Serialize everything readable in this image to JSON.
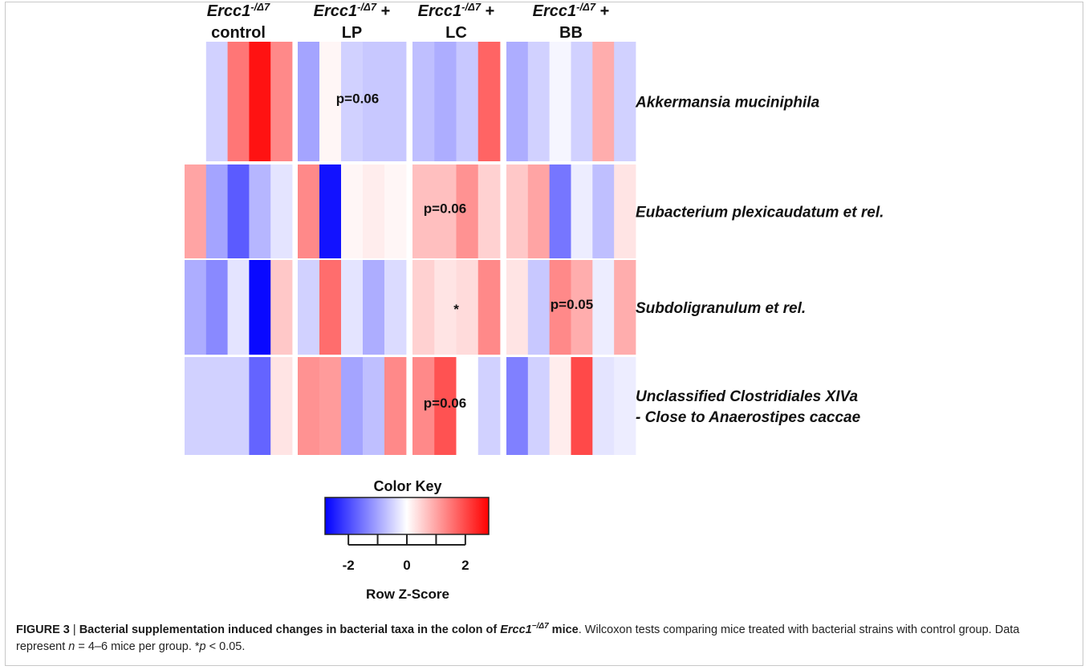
{
  "chart_data": {
    "type": "heatmap",
    "groups": [
      {
        "gene": "Ercc1",
        "sup": "-/Δ7",
        "suffix": "",
        "line2": "control",
        "n": 5
      },
      {
        "gene": "Ercc1",
        "sup": "-/Δ7",
        "suffix": " +",
        "line2": "LP",
        "n": 5
      },
      {
        "gene": "Ercc1",
        "sup": "-/Δ7",
        "suffix": " +",
        "line2": "LC",
        "n": 4
      },
      {
        "gene": "Ercc1",
        "sup": "-/Δ7",
        "suffix": " +",
        "line2": "BB",
        "n": 6
      }
    ],
    "rows": [
      {
        "label_lines": [
          "Akkermansia muciniphila"
        ],
        "values": [
          [
            null,
            -0.5,
            1.5,
            2.6,
            1.3
          ],
          [
            -1.0,
            0.1,
            -0.5,
            -0.6,
            -0.6
          ],
          [
            -0.7,
            -0.9,
            -0.6,
            1.7
          ],
          [
            -0.9,
            -0.5,
            -0.1,
            -0.5,
            0.9,
            -0.5
          ]
        ],
        "annotations": [
          "",
          "p=0.06",
          "",
          ""
        ]
      },
      {
        "label_lines": [
          "Eubacterium plexicaudatum et rel."
        ],
        "values": [
          [
            1.0,
            -1.0,
            -1.8,
            -0.8,
            -0.3
          ],
          [
            1.3,
            -2.6,
            0.1,
            0.2,
            0.1
          ],
          [
            0.7,
            0.7,
            1.2,
            0.5
          ],
          [
            0.6,
            1.0,
            -1.5,
            -0.2,
            -0.7,
            0.3
          ]
        ],
        "annotations": [
          "",
          "",
          "p=0.06",
          ""
        ]
      },
      {
        "label_lines": [
          "Subdoligranulum et rel."
        ],
        "values": [
          [
            -0.9,
            -1.3,
            -0.3,
            -2.7,
            0.6
          ],
          [
            -0.5,
            1.6,
            -0.3,
            -0.9,
            -0.4
          ],
          [
            0.5,
            0.3,
            0.4,
            1.3
          ],
          [
            0.3,
            -0.6,
            1.3,
            0.9,
            -0.2,
            0.9
          ]
        ],
        "annotations": [
          "",
          "",
          "*",
          "p=0.05"
        ]
      },
      {
        "label_lines": [
          "Unclassified Clostridiales XIVa",
          "- Close to Anaerostipes caccae"
        ],
        "values": [
          [
            -0.5,
            -0.5,
            -0.5,
            -1.7,
            0.3
          ],
          [
            1.2,
            1.1,
            -1.0,
            -0.7,
            1.3
          ],
          [
            1.3,
            1.9,
            0.0,
            -0.5
          ],
          [
            -1.4,
            -0.5,
            0.2,
            2.0,
            -0.3,
            -0.2
          ]
        ],
        "annotations": [
          "",
          "",
          "p=0.06",
          ""
        ]
      }
    ],
    "color_key": {
      "title": "Color Key",
      "xlabel": "Row Z-Score",
      "ticks": [
        -2,
        0,
        2
      ],
      "range": [
        -2.8,
        2.8
      ],
      "low_color": "#0000ff",
      "mid_color": "#ffffff",
      "high_color": "#ff0000"
    }
  },
  "caption": {
    "figure_label": "FIGURE 3",
    "separator": " | ",
    "bold_part1": "Bacterial supplementation induced changes in bacterial taxa in the colon of ",
    "bold_gene": "Ercc1",
    "bold_gene_sup": "−/Δ7",
    "bold_part2": " mice",
    "body_part1": ". Wilcoxon tests comparing mice treated with bacterial strains with control group. Data represent ",
    "n_symbol": "n",
    "body_part2": " = 4–6 mice per group. *",
    "p_symbol": "p",
    "body_part3": " < 0.05."
  }
}
